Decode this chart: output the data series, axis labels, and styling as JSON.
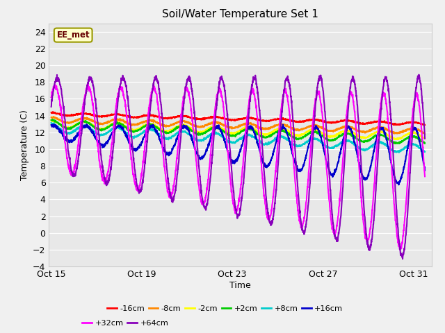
{
  "title": "Soil/Water Temperature Set 1",
  "xlabel": "Time",
  "ylabel": "Temperature (C)",
  "ylim": [
    -4,
    25
  ],
  "yticks": [
    -4,
    -2,
    0,
    2,
    4,
    6,
    8,
    10,
    12,
    14,
    16,
    18,
    20,
    22,
    24
  ],
  "xtick_positions": [
    0,
    4,
    8,
    12,
    16
  ],
  "xtick_labels": [
    "Oct 15",
    "Oct 19",
    "Oct 23",
    "Oct 27",
    "Oct 31"
  ],
  "xlim": [
    -0.1,
    16.8
  ],
  "annotation_text": "EE_met",
  "plot_bg": "#e8e8e8",
  "fig_bg": "#f0f0f0",
  "series": [
    {
      "label": "-16cm",
      "color": "#ff0000"
    },
    {
      "label": "-8cm",
      "color": "#ff8800"
    },
    {
      "label": "-2cm",
      "color": "#ffff00"
    },
    {
      "label": "+2cm",
      "color": "#00cc00"
    },
    {
      "label": "+8cm",
      "color": "#00cccc"
    },
    {
      "label": "+16cm",
      "color": "#0000cc"
    },
    {
      "label": "+32cm",
      "color": "#ff00ff"
    },
    {
      "label": "+64cm",
      "color": "#8800bb"
    }
  ],
  "n_points": 2000,
  "total_days": 16.5
}
